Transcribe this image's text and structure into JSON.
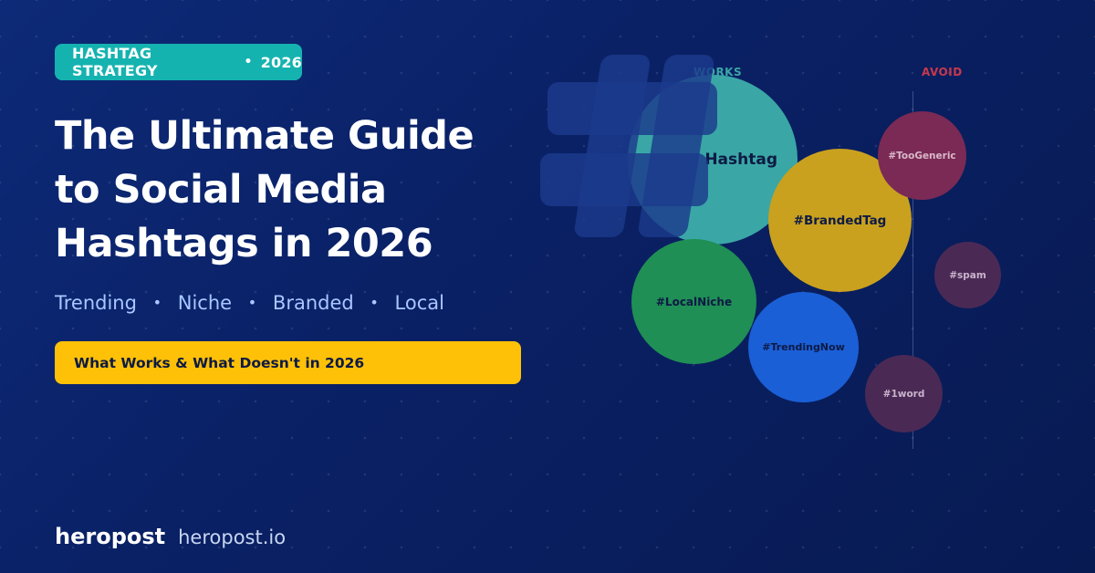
{
  "badge": {
    "label": "HASHTAG STRATEGY",
    "separator": "•",
    "year": "2026",
    "color": "#15b3b0"
  },
  "headline": {
    "lines": [
      "The Ultimate Guide",
      "to Social Media",
      "Hashtags in 2026"
    ]
  },
  "subtitle": {
    "items": [
      "Trending",
      "Niche",
      "Branded",
      "Local"
    ],
    "separator": "•"
  },
  "banner": {
    "label": "What Works & What Doesn't in 2026",
    "color": "#ffc107"
  },
  "footer": {
    "brand": "heropost",
    "url": "heropost.io"
  },
  "graphic": {
    "icon": "hashtag-icon",
    "works_label": "WORKS",
    "avoid_label": "AVOID",
    "works_color": "#3aa7a6",
    "avoid_color": "#c8384c",
    "bubbles": [
      {
        "tag": "#NicheHashtag",
        "visible_text": "Hashtag",
        "group": "works",
        "color": "#3aa7a6"
      },
      {
        "tag": "#BrandedTag",
        "visible_text": "#BrandedTag",
        "group": "works",
        "color": "#c9a11f"
      },
      {
        "tag": "#LocalNiche",
        "visible_text": "#LocalNiche",
        "group": "works",
        "color": "#1f8f55"
      },
      {
        "tag": "#TrendingNow",
        "visible_text": "#TrendingNow",
        "group": "works",
        "color": "#1a5fd6"
      },
      {
        "tag": "#TooGeneric",
        "visible_text": "#TooGeneric",
        "group": "avoid",
        "color": "#7a2a55"
      },
      {
        "tag": "#spam",
        "visible_text": "#spam",
        "group": "avoid",
        "color": "#4a2a55"
      },
      {
        "tag": "#1word",
        "visible_text": "#1word",
        "group": "avoid",
        "color": "#4a2a55"
      }
    ]
  }
}
